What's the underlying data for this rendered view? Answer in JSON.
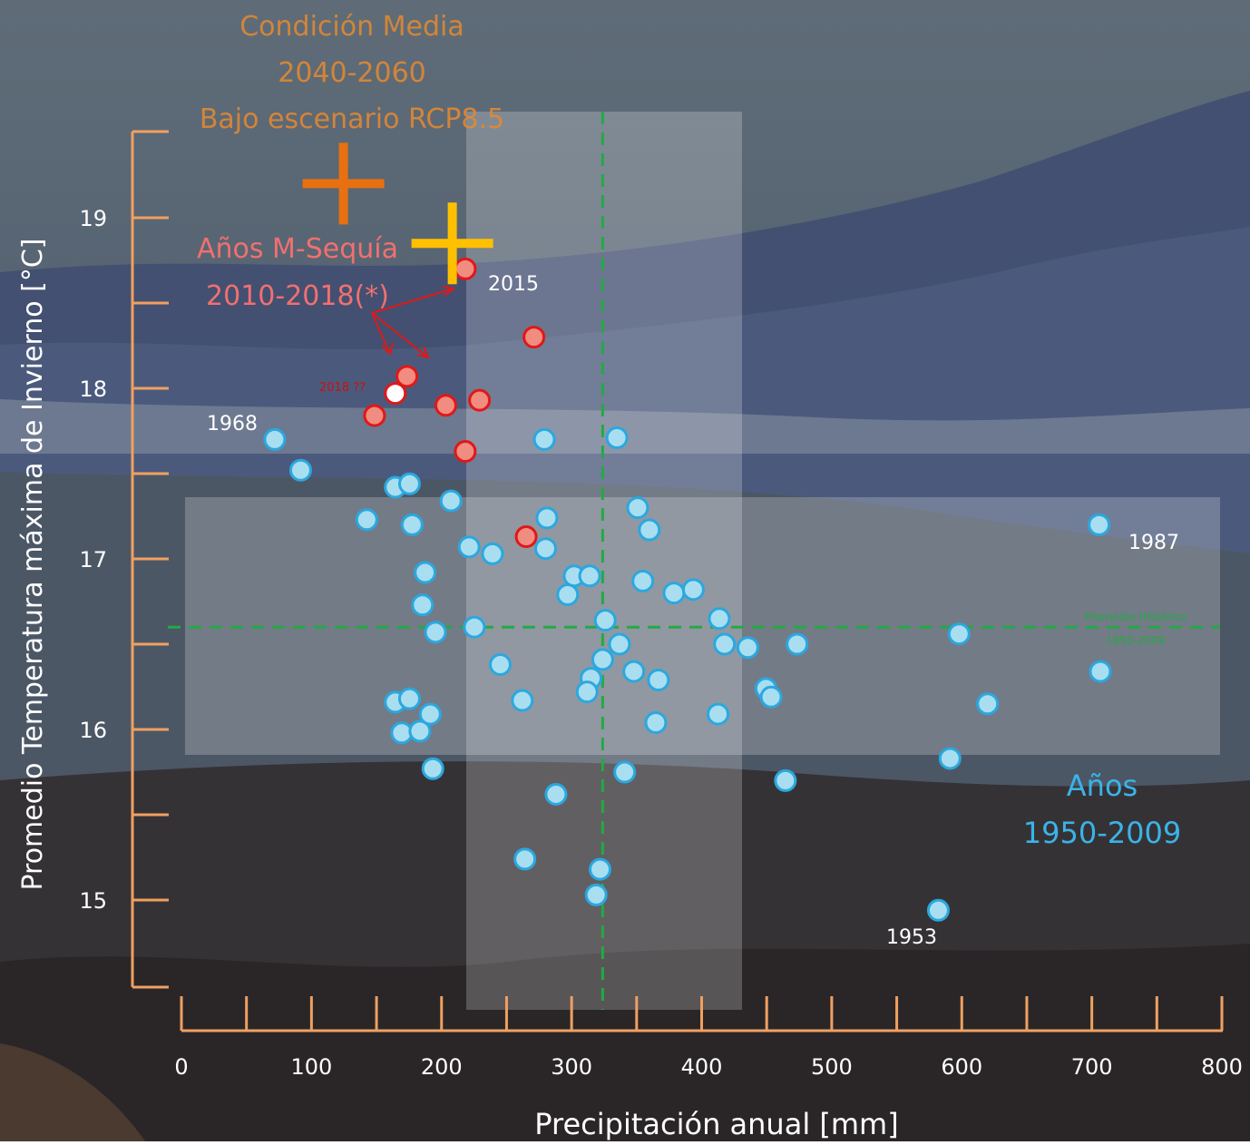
{
  "chart_data": {
    "type": "scatter",
    "xlabel": "Precipitación anual [mm]",
    "ylabel": "Promedio Temperatura máxima de Invierno [°C]",
    "xlim": [
      0,
      800
    ],
    "ylim": [
      14.5,
      19.5
    ],
    "x_ticks": [
      "0",
      "100",
      "200",
      "300",
      "400",
      "500",
      "600",
      "700",
      "800"
    ],
    "y_ticks": [
      "15",
      "16",
      "17",
      "18",
      "19"
    ],
    "grid": false,
    "colors": {
      "historic": "#a9def0",
      "historic_edge": "#2aa8e0",
      "drought": "#f08c80",
      "drought_edge": "#e01818",
      "axis": "#f0a060",
      "dashed": "#22aa44",
      "orange_cross": "#e87010",
      "yellow_cross": "#ffc000"
    },
    "reference_lines": {
      "mean_precipitation": 325,
      "mean_temperature": 16.6,
      "label_line1": "Promedio Histórico",
      "label_line2": "1950-2009"
    },
    "texts": {
      "scenario_line1": "Condición Media",
      "scenario_line2": "2040-2060",
      "scenario_line3": "Bajo escenario RCP8.5",
      "drought_line1": "Años M-Sequía",
      "drought_line2": "2010-2018(*)",
      "historic_line1": "Años",
      "historic_line2": "1950-2009",
      "label_2018": "2018 ??",
      "label_2015": "2015",
      "label_1968": "1968",
      "label_1987": "1987",
      "label_1953": "1953"
    },
    "markers": [
      {
        "name": "Condición Media 2040-2060",
        "x": 125,
        "y": 19.2,
        "color": "#e87010"
      },
      {
        "name": "",
        "x": 209,
        "y": 18.85,
        "color": "#ffc000"
      }
    ],
    "series": [
      {
        "name": "Años 1950-2009",
        "points": [
          [
            72,
            17.7
          ],
          [
            92,
            17.52
          ],
          [
            143,
            17.23
          ],
          [
            165,
            17.42
          ],
          [
            176,
            17.44
          ],
          [
            178,
            17.2
          ],
          [
            208,
            17.34
          ],
          [
            222,
            17.07
          ],
          [
            240,
            17.03
          ],
          [
            280,
            17.7
          ],
          [
            282,
            17.24
          ],
          [
            281,
            17.06
          ],
          [
            303,
            16.9
          ],
          [
            315,
            16.9
          ],
          [
            298,
            16.79
          ],
          [
            336,
            17.71
          ],
          [
            352,
            17.3
          ],
          [
            361,
            17.17
          ],
          [
            356,
            16.87
          ],
          [
            380,
            16.8
          ],
          [
            395,
            16.82
          ],
          [
            188,
            16.92
          ],
          [
            186,
            16.73
          ],
          [
            196,
            16.57
          ],
          [
            226,
            16.6
          ],
          [
            327,
            16.64
          ],
          [
            338,
            16.5
          ],
          [
            325,
            16.41
          ],
          [
            316,
            16.3
          ],
          [
            313,
            16.22
          ],
          [
            349,
            16.34
          ],
          [
            368,
            16.29
          ],
          [
            246,
            16.38
          ],
          [
            263,
            16.17
          ],
          [
            415,
            16.65
          ],
          [
            419,
            16.5
          ],
          [
            437,
            16.48
          ],
          [
            475,
            16.5
          ],
          [
            451,
            16.24
          ],
          [
            455,
            16.19
          ],
          [
            165,
            16.16
          ],
          [
            176,
            16.18
          ],
          [
            170,
            15.98
          ],
          [
            184,
            15.99
          ],
          [
            192,
            16.09
          ],
          [
            194,
            15.77
          ],
          [
            414,
            16.09
          ],
          [
            366,
            16.04
          ],
          [
            289,
            15.62
          ],
          [
            342,
            15.75
          ],
          [
            466,
            15.7
          ],
          [
            265,
            15.24
          ],
          [
            323,
            15.18
          ],
          [
            320,
            15.03
          ],
          [
            600,
            16.56
          ],
          [
            622,
            16.15
          ],
          [
            593,
            15.83
          ],
          [
            708,
            17.2
          ],
          [
            709,
            16.34
          ],
          [
            584,
            14.94
          ]
        ]
      },
      {
        "name": "Años M-Sequía 2010-2018(*)",
        "points": [
          [
            219,
            18.7
          ],
          [
            272,
            18.3
          ],
          [
            174,
            18.07
          ],
          [
            149,
            17.84
          ],
          [
            204,
            17.9
          ],
          [
            230,
            17.93
          ],
          [
            219,
            17.63
          ],
          [
            266,
            17.13
          ]
        ]
      },
      {
        "name": "2018 ??",
        "points": [
          [
            165,
            17.97
          ]
        ]
      }
    ]
  }
}
